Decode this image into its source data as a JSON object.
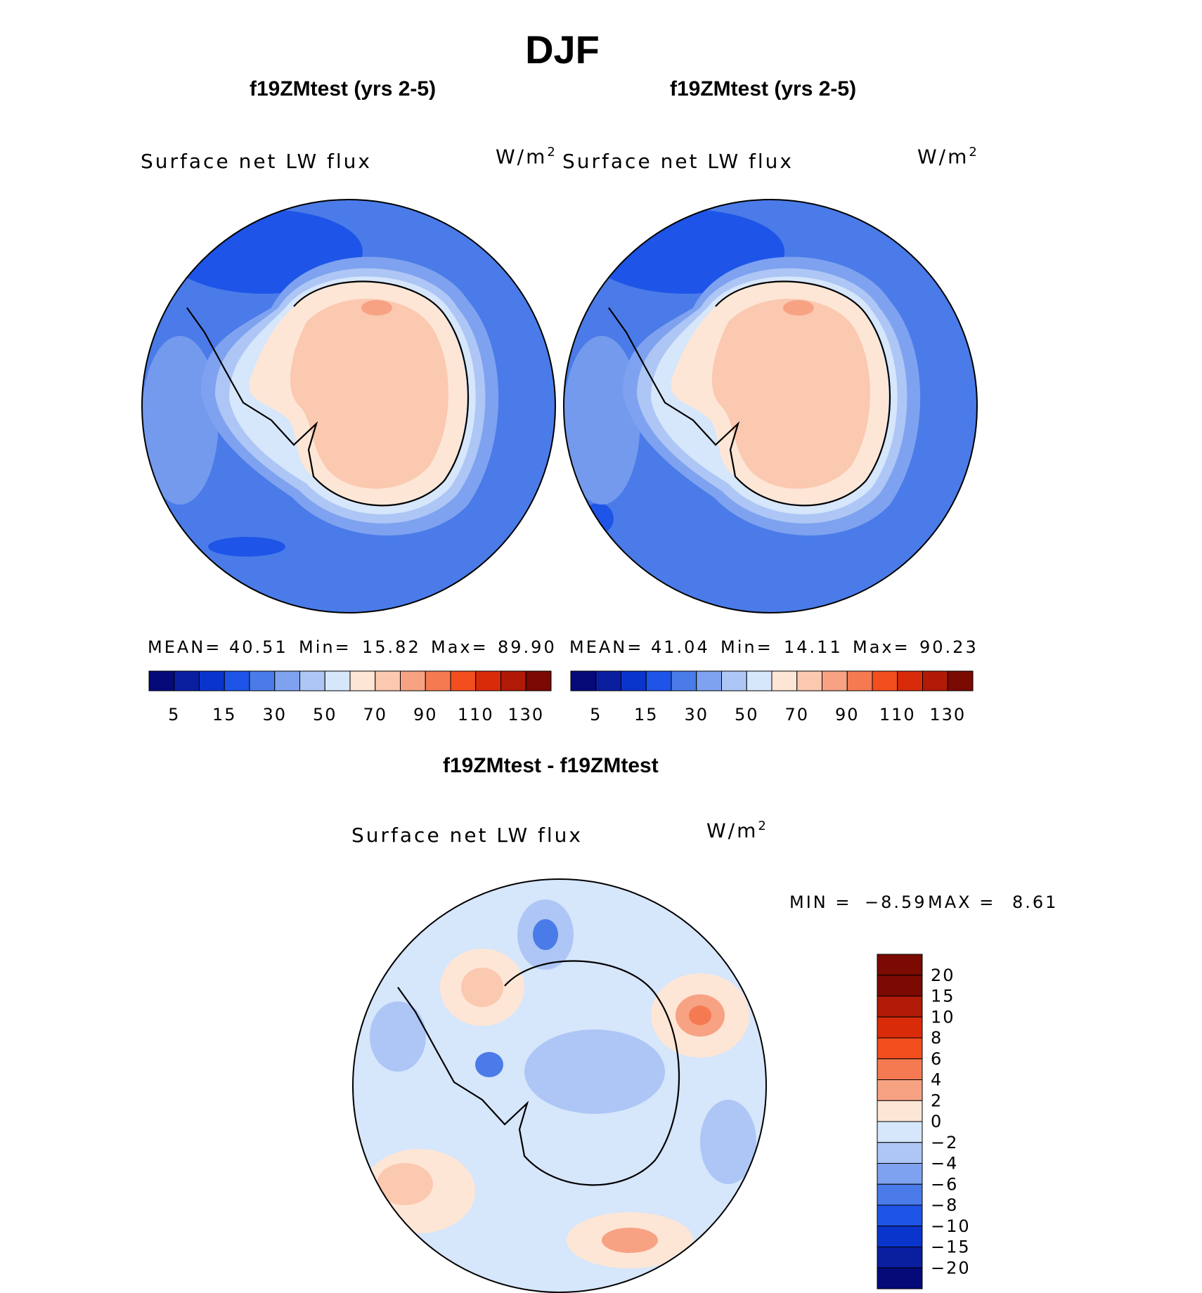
{
  "season": "DJF",
  "panels": [
    {
      "title": "f19ZMtest (yrs 2-5)",
      "variable": "Surface net LW flux",
      "units": "W/m",
      "units_sup": "2",
      "mean_label": "MEAN=",
      "mean": "40.51",
      "min_label": "Min=",
      "min": "15.82",
      "max_label": "Max=",
      "max": "89.90"
    },
    {
      "title": "f19ZMtest (yrs 2-5)",
      "variable": "Surface net LW flux",
      "units": "W/m",
      "units_sup": "2",
      "mean_label": "MEAN=",
      "mean": "41.04",
      "min_label": "Min=",
      "min": "14.11",
      "max_label": "Max=",
      "max": "90.23"
    },
    {
      "title": "f19ZMtest - f19ZMtest",
      "variable": "Surface net LW flux",
      "units": "W/m",
      "units_sup": "2",
      "min_label": "MIN =",
      "min": "−8.59",
      "max_label": "MAX =",
      "max": "8.61"
    }
  ],
  "chart_data": [
    {
      "type": "heatmap",
      "projection": "south-polar-stereographic",
      "title": "f19ZMtest (yrs 2-5)",
      "variable": "Surface net LW flux",
      "units": "W/m^2",
      "mean": 40.51,
      "min": 15.82,
      "max": 89.9,
      "colorbar_ticks": [
        5,
        15,
        30,
        50,
        70,
        90,
        110,
        130
      ],
      "colorbar_colors": [
        "#050a78",
        "#0a1ea0",
        "#0a35cc",
        "#1e55e8",
        "#4a7be8",
        "#7ea2ef",
        "#adc6f5",
        "#d6e6fb",
        "#fde6d6",
        "#fbc8b0",
        "#f7a283",
        "#f57a52",
        "#f24e1e",
        "#d92b0a",
        "#b01a06",
        "#7a0a02"
      ],
      "regions": {
        "ocean": 30,
        "coastal_band": 50,
        "antarctic_interior": 70,
        "interior_max": 90
      }
    },
    {
      "type": "heatmap",
      "projection": "south-polar-stereographic",
      "title": "f19ZMtest (yrs 2-5)",
      "variable": "Surface net LW flux",
      "units": "W/m^2",
      "mean": 41.04,
      "min": 14.11,
      "max": 90.23,
      "colorbar_ticks": [
        5,
        15,
        30,
        50,
        70,
        90,
        110,
        130
      ],
      "colorbar_colors": [
        "#050a78",
        "#0a1ea0",
        "#0a35cc",
        "#1e55e8",
        "#4a7be8",
        "#7ea2ef",
        "#adc6f5",
        "#d6e6fb",
        "#fde6d6",
        "#fbc8b0",
        "#f7a283",
        "#f57a52",
        "#f24e1e",
        "#d92b0a",
        "#b01a06",
        "#7a0a02"
      ],
      "regions": {
        "ocean": 30,
        "coastal_band": 50,
        "antarctic_interior": 70,
        "interior_max": 90
      }
    },
    {
      "type": "heatmap",
      "projection": "south-polar-stereographic",
      "title": "f19ZMtest - f19ZMtest",
      "variable": "Surface net LW flux",
      "units": "W/m^2",
      "min": -8.59,
      "max": 8.61,
      "colorbar_ticks": [
        "20",
        "15",
        "10",
        "8",
        "6",
        "4",
        "2",
        "0",
        "−2",
        "−4",
        "−6",
        "−8",
        "−10",
        "−15",
        "−20"
      ],
      "colorbar_colors": [
        "#7a0a02",
        "#b01a06",
        "#d92b0a",
        "#f24e1e",
        "#f57a52",
        "#f7a283",
        "#fde6d6",
        "#d6e6fb",
        "#adc6f5",
        "#7ea2ef",
        "#4a7be8",
        "#1e55e8",
        "#0a35cc",
        "#0a1ea0",
        "#050a78"
      ]
    }
  ]
}
